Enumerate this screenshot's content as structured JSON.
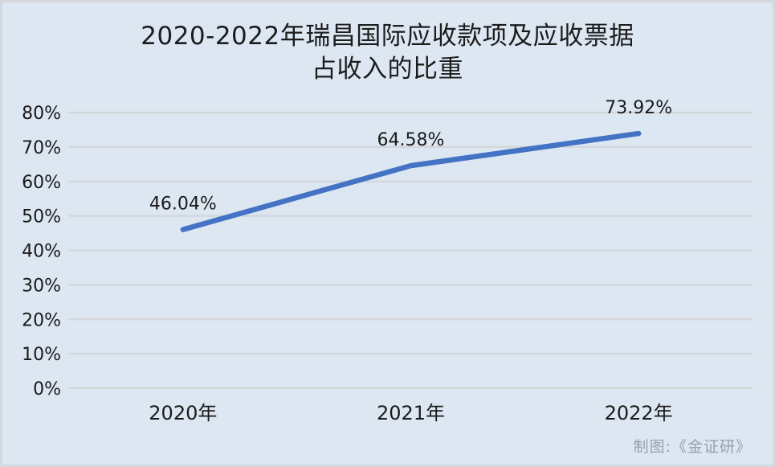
{
  "title": {
    "line1": "2020-2022年瑞昌国际应收款项及应收票据",
    "line2": "占收入的比重"
  },
  "credit": "制图:《金证研》",
  "colors": {
    "background": "#dce7f2",
    "frame_border": "#d4d7db",
    "line": "#4472c4",
    "gridline": "#d3d4d6",
    "axis_text": "#1a1a1a",
    "data_label_text": "#1a1a1a",
    "credit_text": "#93a0b0"
  },
  "chart_data": {
    "type": "line",
    "title": "2020-2022年瑞昌国际应收款项及应收票据占收入的比重",
    "categories": [
      "2020年",
      "2021年",
      "2022年"
    ],
    "values": [
      46.04,
      64.58,
      73.92
    ],
    "data_labels": [
      "46.04%",
      "64.58%",
      "73.92%"
    ],
    "ylim": [
      0,
      80
    ],
    "ytick_step": 10,
    "ytick_labels": [
      "0%",
      "10%",
      "20%",
      "30%",
      "40%",
      "50%",
      "60%",
      "70%",
      "80%"
    ],
    "xlabel": "",
    "ylabel": "",
    "grid": true,
    "legend": false
  }
}
